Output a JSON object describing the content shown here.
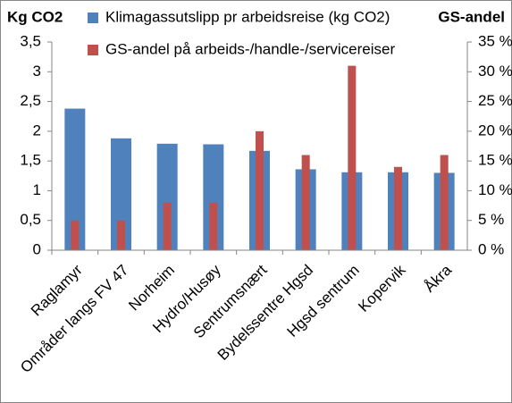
{
  "chart_data": {
    "type": "bar",
    "y_label": "Kg CO2",
    "y2_label": "GS-andel",
    "categories": [
      "Raglamyr",
      "Områder langs FV 47",
      "Norheim",
      "Hydro/Husøy",
      "Sentrumsnært",
      "Bydelssentre Hgsd",
      "Hgsd sentrum",
      "Kopervik",
      "Åkra"
    ],
    "series": [
      {
        "name": "Klimagassutslipp pr arbeidsreise (kg CO2)",
        "color": "#4f81bd",
        "values": [
          2.38,
          1.88,
          1.79,
          1.78,
          1.67,
          1.36,
          1.31,
          1.31,
          1.3
        ]
      },
      {
        "name": "GS-andel på arbeids-/handle-/servicereiser",
        "color": "#c0504d",
        "axis": "y2",
        "values": [
          5,
          5,
          8,
          8,
          20,
          16,
          31,
          14,
          16
        ]
      }
    ],
    "ylim": [
      0,
      3.5
    ],
    "yticks": [
      0,
      {
        "value": 0.5,
        "label": "0,5"
      },
      1,
      {
        "value": 1.5,
        "label": "1,5"
      },
      2,
      {
        "value": 2.5,
        "label": "2,5"
      },
      3,
      {
        "value": 3.5,
        "label": "3,5"
      }
    ],
    "y2lim": [
      0,
      35
    ],
    "y2ticks": [
      {
        "value": 0,
        "label": "0 %"
      },
      {
        "value": 5,
        "label": "5 %"
      },
      {
        "value": 10,
        "label": "10 %"
      },
      {
        "value": 15,
        "label": "15 %"
      },
      {
        "value": 20,
        "label": "20 %"
      },
      {
        "value": 25,
        "label": "25 %"
      },
      {
        "value": 30,
        "label": "30 %"
      },
      {
        "value": 35,
        "label": "35 %"
      }
    ]
  }
}
